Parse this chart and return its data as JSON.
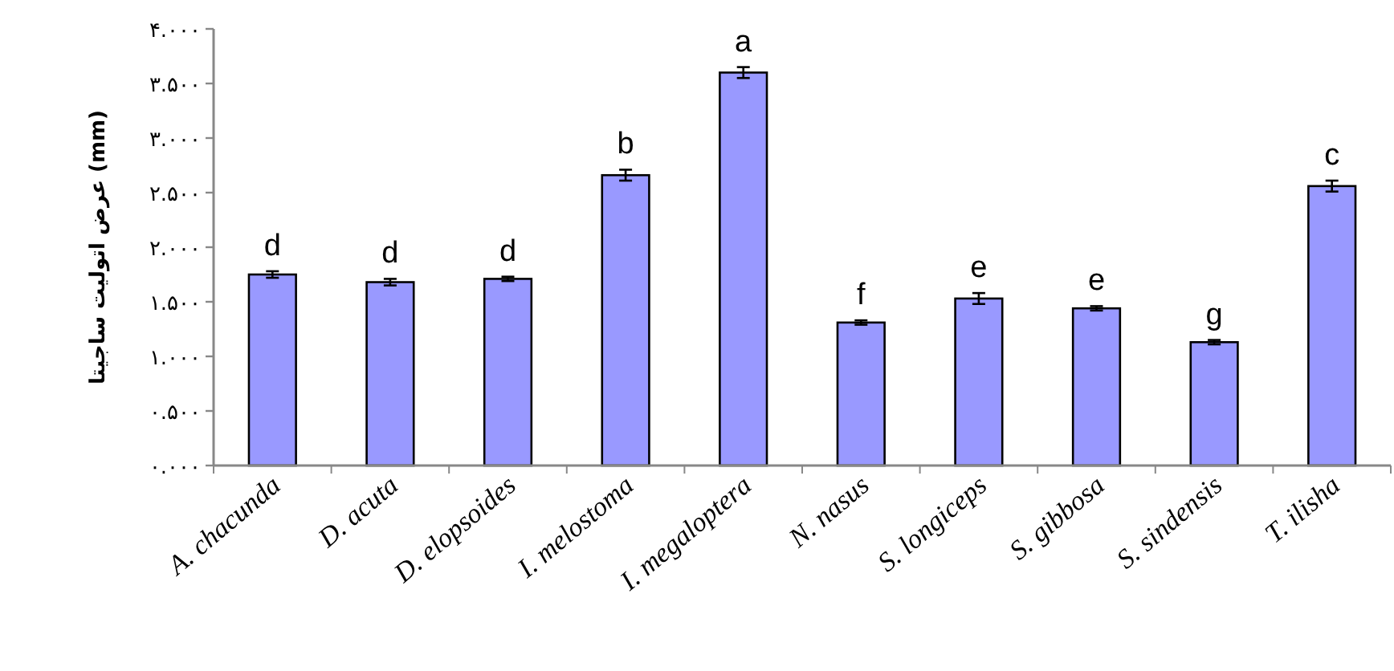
{
  "chart_data": {
    "type": "bar",
    "ylabel": "عرض اتولیت ساجیتا (mm)",
    "categories": [
      "A. chacunda",
      "D. acuta",
      "D. elopsoides",
      "I. melostoma",
      "I. megaloptera",
      "N. nasus",
      "S. longiceps",
      "S. gibbosa",
      "S. sindensis",
      "T. ilisha"
    ],
    "series": [
      {
        "color": "#9999ff",
        "values": [
          1.75,
          1.68,
          1.71,
          2.66,
          3.6,
          1.31,
          1.53,
          1.44,
          1.13,
          2.56
        ],
        "errors": [
          0.03,
          0.03,
          0.02,
          0.05,
          0.05,
          0.02,
          0.05,
          0.02,
          0.02,
          0.05
        ]
      }
    ],
    "ylim": [
      0,
      4
    ],
    "yticks": [
      {
        "value": 0,
        "label": "۰.۰۰۰"
      },
      {
        "value": 0.5,
        "label": "۰.۵۰۰"
      },
      {
        "value": 1,
        "label": "۱.۰۰۰"
      },
      {
        "value": 1.5,
        "label": "۱.۵۰۰"
      },
      {
        "value": 2,
        "label": "۲.۰۰۰"
      },
      {
        "value": 2.5,
        "label": "۲.۵۰۰"
      },
      {
        "value": 3,
        "label": "۳.۰۰۰"
      },
      {
        "value": 3.5,
        "label": "۳.۵۰۰"
      },
      {
        "value": 4,
        "label": "۴.۰۰۰"
      }
    ],
    "grid": false,
    "annotations": [
      {
        "text": "d",
        "x": "A. chacunda",
        "y": 1.75
      },
      {
        "text": "d",
        "x": "D. acuta",
        "y": 1.68
      },
      {
        "text": "d",
        "x": "D. elopsoides",
        "y": 1.71
      },
      {
        "text": "b",
        "x": "I. melostoma",
        "y": 2.66
      },
      {
        "text": "a",
        "x": "I. megaloptera",
        "y": 3.6
      },
      {
        "text": "f",
        "x": "N. nasus",
        "y": 1.31
      },
      {
        "text": "e",
        "x": "S. longiceps",
        "y": 1.53
      },
      {
        "text": "e",
        "x": "S. gibbosa",
        "y": 1.44
      },
      {
        "text": "g",
        "x": "S. sindensis",
        "y": 1.13
      },
      {
        "text": "c",
        "x": "T. ilisha",
        "y": 2.56
      }
    ]
  }
}
